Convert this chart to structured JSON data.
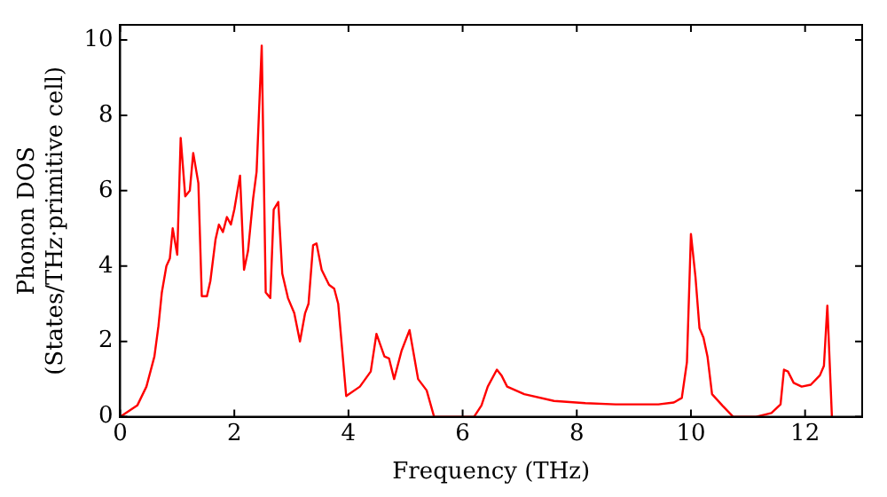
{
  "chart_data": {
    "type": "line",
    "xlabel": "Frequency (THz)",
    "ylabel": "Phonon DOS\n(States/THz·primitive cell)",
    "xlim": [
      0,
      13
    ],
    "ylim": [
      0,
      10.4
    ],
    "xticks": [
      0,
      2,
      4,
      6,
      8,
      10,
      12
    ],
    "yticks": [
      0,
      2,
      4,
      6,
      8,
      10
    ],
    "grid": false,
    "legend": false,
    "marker": "none",
    "line_style": "solid",
    "series": [
      {
        "color": "#ff0000",
        "x": [
          0,
          0.3,
          0.46,
          0.6,
          0.67,
          0.73,
          0.81,
          0.87,
          0.92,
          1.0,
          1.06,
          1.14,
          1.22,
          1.28,
          1.37,
          1.43,
          1.52,
          1.58,
          1.67,
          1.73,
          1.8,
          1.87,
          1.94,
          2.0,
          2.1,
          2.17,
          2.24,
          2.33,
          2.39,
          2.48,
          2.55,
          2.63,
          2.69,
          2.77,
          2.84,
          2.94,
          3.05,
          3.15,
          3.24,
          3.3,
          3.38,
          3.44,
          3.53,
          3.66,
          3.75,
          3.82,
          3.96,
          4.2,
          4.39,
          4.49,
          4.63,
          4.71,
          4.8,
          4.93,
          5.07,
          5.22,
          5.37,
          5.5,
          6.2,
          6.33,
          6.44,
          6.6,
          6.68,
          6.78,
          7.08,
          7.6,
          8.15,
          8.68,
          9.43,
          9.7,
          9.84,
          9.93,
          10.0,
          10.08,
          10.15,
          10.22,
          10.29,
          10.37,
          10.55,
          10.74,
          11.14,
          11.41,
          11.57,
          11.63,
          11.7,
          11.8,
          11.94,
          12.1,
          12.26,
          12.33,
          12.39,
          12.47
        ],
        "values": [
          0,
          0.3,
          0.8,
          1.6,
          2.4,
          3.3,
          4.0,
          4.2,
          5.0,
          4.3,
          7.4,
          5.85,
          6.0,
          7.0,
          6.2,
          3.2,
          3.2,
          3.6,
          4.7,
          5.1,
          4.9,
          5.3,
          5.1,
          5.5,
          6.4,
          3.9,
          4.4,
          5.8,
          6.5,
          9.85,
          3.3,
          3.15,
          5.5,
          5.7,
          3.8,
          3.15,
          2.75,
          2.0,
          2.75,
          3.0,
          4.55,
          4.6,
          3.9,
          3.5,
          3.4,
          3.0,
          0.55,
          0.8,
          1.2,
          2.2,
          1.6,
          1.55,
          1.0,
          1.75,
          2.3,
          1.0,
          0.7,
          0,
          0,
          0.3,
          0.8,
          1.25,
          1.1,
          0.8,
          0.6,
          0.42,
          0.36,
          0.33,
          0.33,
          0.38,
          0.5,
          1.45,
          4.85,
          3.7,
          2.35,
          2.1,
          1.6,
          0.6,
          0.3,
          0,
          0,
          0.1,
          0.33,
          1.25,
          1.2,
          0.9,
          0.8,
          0.85,
          1.1,
          1.35,
          2.95,
          0
        ]
      }
    ]
  }
}
